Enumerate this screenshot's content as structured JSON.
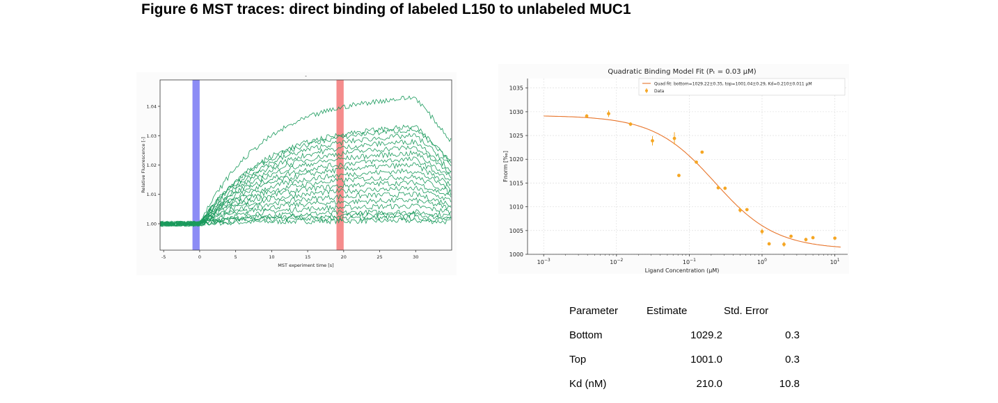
{
  "figure_title": "Figure 6 MST traces: direct binding of labeled L150 to unlabeled MUC1",
  "colors": {
    "trace": "#1a9a5c",
    "cold_region": "#8c8cf5",
    "hot_region": "#f58c8c",
    "fit_line": "#e8742a",
    "data_points": "#f5a623"
  },
  "chart_data": [
    {
      "type": "line",
      "title": "-",
      "xlabel": "MST experiment time [s]",
      "ylabel": "Relative Fluorescence [-]",
      "xlim": [
        -5.5,
        35
      ],
      "ylim": [
        0.991,
        1.049
      ],
      "x_ticks": [
        -5,
        0,
        5,
        10,
        15,
        20,
        25,
        30
      ],
      "x_tick_labels": [
        "-5",
        "0",
        "5",
        "10",
        "15",
        "20",
        "25",
        "30"
      ],
      "y_ticks": [
        1.0,
        1.01,
        1.02,
        1.03,
        1.04
      ],
      "y_tick_labels": [
        "1.00",
        "1.01",
        "1.02",
        "1.03",
        "1.04"
      ],
      "cold_region": [
        -1,
        0
      ],
      "hot_region": [
        19,
        20
      ],
      "series_description": "raw MST traces, one per ligand concentration",
      "trace_end_levels": [
        1.001,
        1.002,
        1.003,
        1.004,
        1.006,
        1.008,
        1.01,
        1.012,
        1.014,
        1.016,
        1.018,
        1.02,
        1.022,
        1.024,
        1.026,
        1.028,
        1.03,
        1.032,
        1.033,
        1.043
      ]
    },
    {
      "type": "scatter",
      "title": "Quadratic Binding Model Fit (Pₜ = 0.03 µM)",
      "xlabel": "Ligand Concentration (µM)",
      "ylabel": "Fnorm [‰]",
      "x_scale": "log",
      "xlim": [
        0.0006,
        15
      ],
      "ylim": [
        1000,
        1037
      ],
      "x_ticks": [
        0.001,
        0.01,
        0.1,
        1,
        10
      ],
      "y_ticks": [
        1000,
        1005,
        1010,
        1015,
        1020,
        1025,
        1030,
        1035
      ],
      "y_tick_labels": [
        "1000",
        "1005",
        "1010",
        "1015",
        "1020",
        "1025",
        "1030",
        "1035"
      ],
      "grid": true,
      "legend_position": "top-right",
      "fit": {
        "name": "Quad fit: bottom=1029.22±0.35, top=1001.04±0.29, Kd=0.210±0.011 µM",
        "bottom": 1029.22,
        "top": 1001.04,
        "kd": 0.21,
        "pt": 0.03,
        "x_range": [
          0.001,
          12
        ]
      },
      "series": [
        {
          "name": "Data",
          "x": [
            0.0039,
            0.0078,
            0.0156,
            0.0312,
            0.0625,
            0.072,
            0.125,
            0.15,
            0.25,
            0.31,
            0.5,
            0.62,
            1.0,
            1.25,
            2.0,
            2.5,
            4.0,
            5.0,
            10.0
          ],
          "y": [
            1029.1,
            1029.6,
            1027.4,
            1023.9,
            1024.4,
            1016.6,
            1019.4,
            1021.5,
            1014.0,
            1013.9,
            1009.3,
            1009.4,
            1004.8,
            1002.2,
            1002.1,
            1003.8,
            1003.1,
            1003.5,
            1003.4
          ],
          "err": [
            0.4,
            0.7,
            0.4,
            1.0,
            1.3,
            0.2,
            0.2,
            0.2,
            0.2,
            0.2,
            0.5,
            0.2,
            0.6,
            0.2,
            0.5,
            0.2,
            0.4,
            0.2,
            0.3
          ]
        }
      ]
    }
  ],
  "param_table": {
    "headers": [
      "Parameter",
      "Estimate",
      "Std. Error"
    ],
    "rows": [
      {
        "name": "Bottom",
        "estimate": "1029.2",
        "error": "0.3"
      },
      {
        "name": "Top",
        "estimate": "1001.0",
        "error": "0.3"
      },
      {
        "name": "Kd (nM)",
        "estimate": "210.0",
        "error": "10.8"
      }
    ]
  }
}
